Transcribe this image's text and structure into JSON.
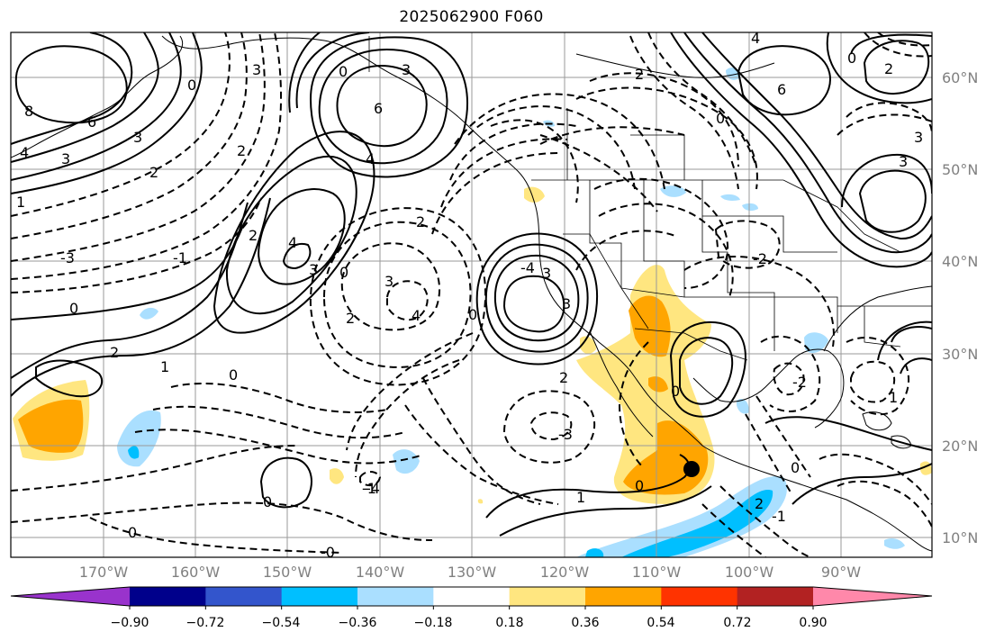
{
  "title": "2025062900 F060",
  "lat_labels": [
    "60°N",
    "50°N",
    "40°N",
    "30°N",
    "20°N",
    "10°N"
  ],
  "lon_labels": [
    "170°W",
    "160°W",
    "150°W",
    "140°W",
    "130°W",
    "120°W",
    "110°W",
    "100°W",
    "90°W"
  ],
  "colorbar": {
    "tick_labels": [
      "−0.90",
      "−0.72",
      "−0.54",
      "−0.36",
      "−0.18",
      "0.18",
      "0.36",
      "0.54",
      "0.72",
      "0.90"
    ],
    "colors": [
      "#9933cc",
      "#00008b",
      "#3355cc",
      "#00bfff",
      "#aadfff",
      "#ffffff",
      "#ffe680",
      "#ffa500",
      "#ff3300",
      "#b22222",
      "#ff88aa"
    ]
  },
  "contour_labels": [
    "8",
    "6",
    "4",
    "3",
    "3",
    "2",
    "1",
    "0",
    "6",
    "4",
    "3",
    "2",
    "4",
    "3",
    "3",
    "0",
    "2",
    "3",
    "4",
    "0",
    "3",
    "2",
    "3",
    "-4",
    "-3",
    "-1",
    "0",
    "2",
    "1",
    "0",
    "2",
    "2",
    "-3",
    "-4",
    "0",
    "0",
    "-0",
    "-1",
    "1",
    "0",
    "2",
    "-1",
    "1",
    "0",
    "0",
    "0",
    "6",
    "4",
    "0",
    "2",
    "3",
    "3",
    "0",
    "2",
    "-2",
    "-2"
  ],
  "marker": "black-dot"
}
